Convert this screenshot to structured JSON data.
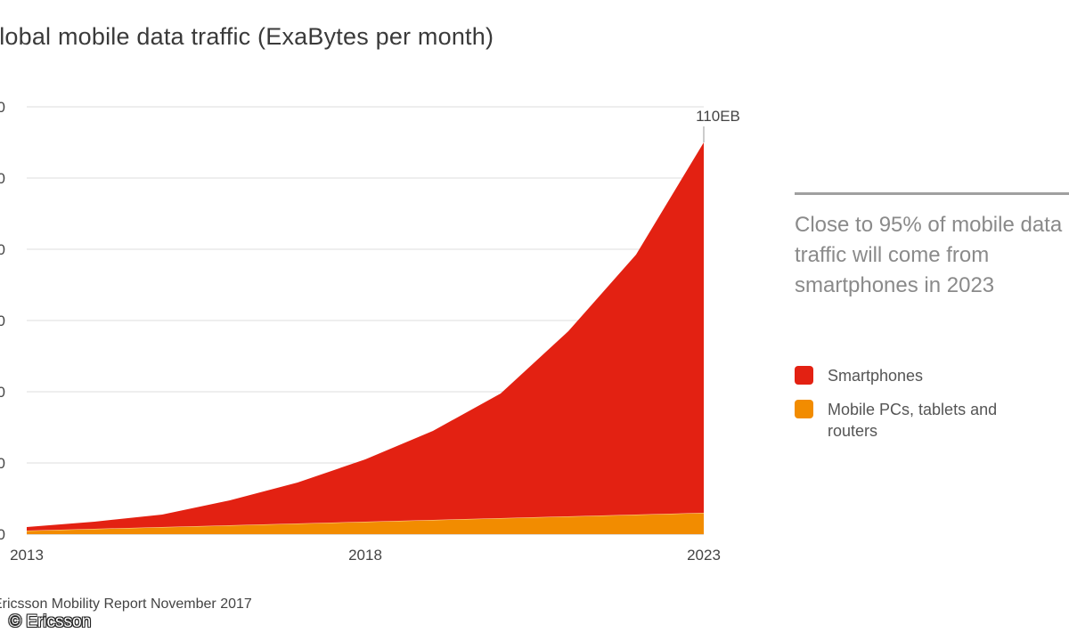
{
  "chart_data": {
    "type": "area",
    "title": "Global mobile data traffic (ExaBytes per month)",
    "x": [
      2013,
      2014,
      2015,
      2016,
      2017,
      2018,
      2019,
      2020,
      2021,
      2022,
      2023
    ],
    "x_tick_labels": [
      "2013",
      "2018",
      "2023"
    ],
    "y_tick_labels": [
      "0",
      "0",
      "0",
      "0",
      "0",
      "0",
      "0"
    ],
    "ylim": [
      0,
      120
    ],
    "stacked": true,
    "grid": true,
    "series": [
      {
        "name": "Mobile PCs, tablets and routers",
        "color": "#f28c00",
        "values": [
          1,
          1.5,
          2,
          2.5,
          3,
          3.5,
          4,
          4.5,
          5,
          5.5,
          6
        ]
      },
      {
        "name": "Smartphones",
        "color": "#e32112",
        "values": [
          1,
          2,
          3.5,
          7,
          11.5,
          17.5,
          25,
          35,
          52,
          73,
          104
        ]
      }
    ],
    "annotations": [
      {
        "x": 2023,
        "text": "110EB"
      }
    ],
    "legend_position": "right"
  },
  "callout": {
    "text": "Close to 95% of mobile data traffic will come from smartphones in 2023"
  },
  "source": "Ericsson Mobility Report November 2017",
  "copyright": "© Ericsson"
}
